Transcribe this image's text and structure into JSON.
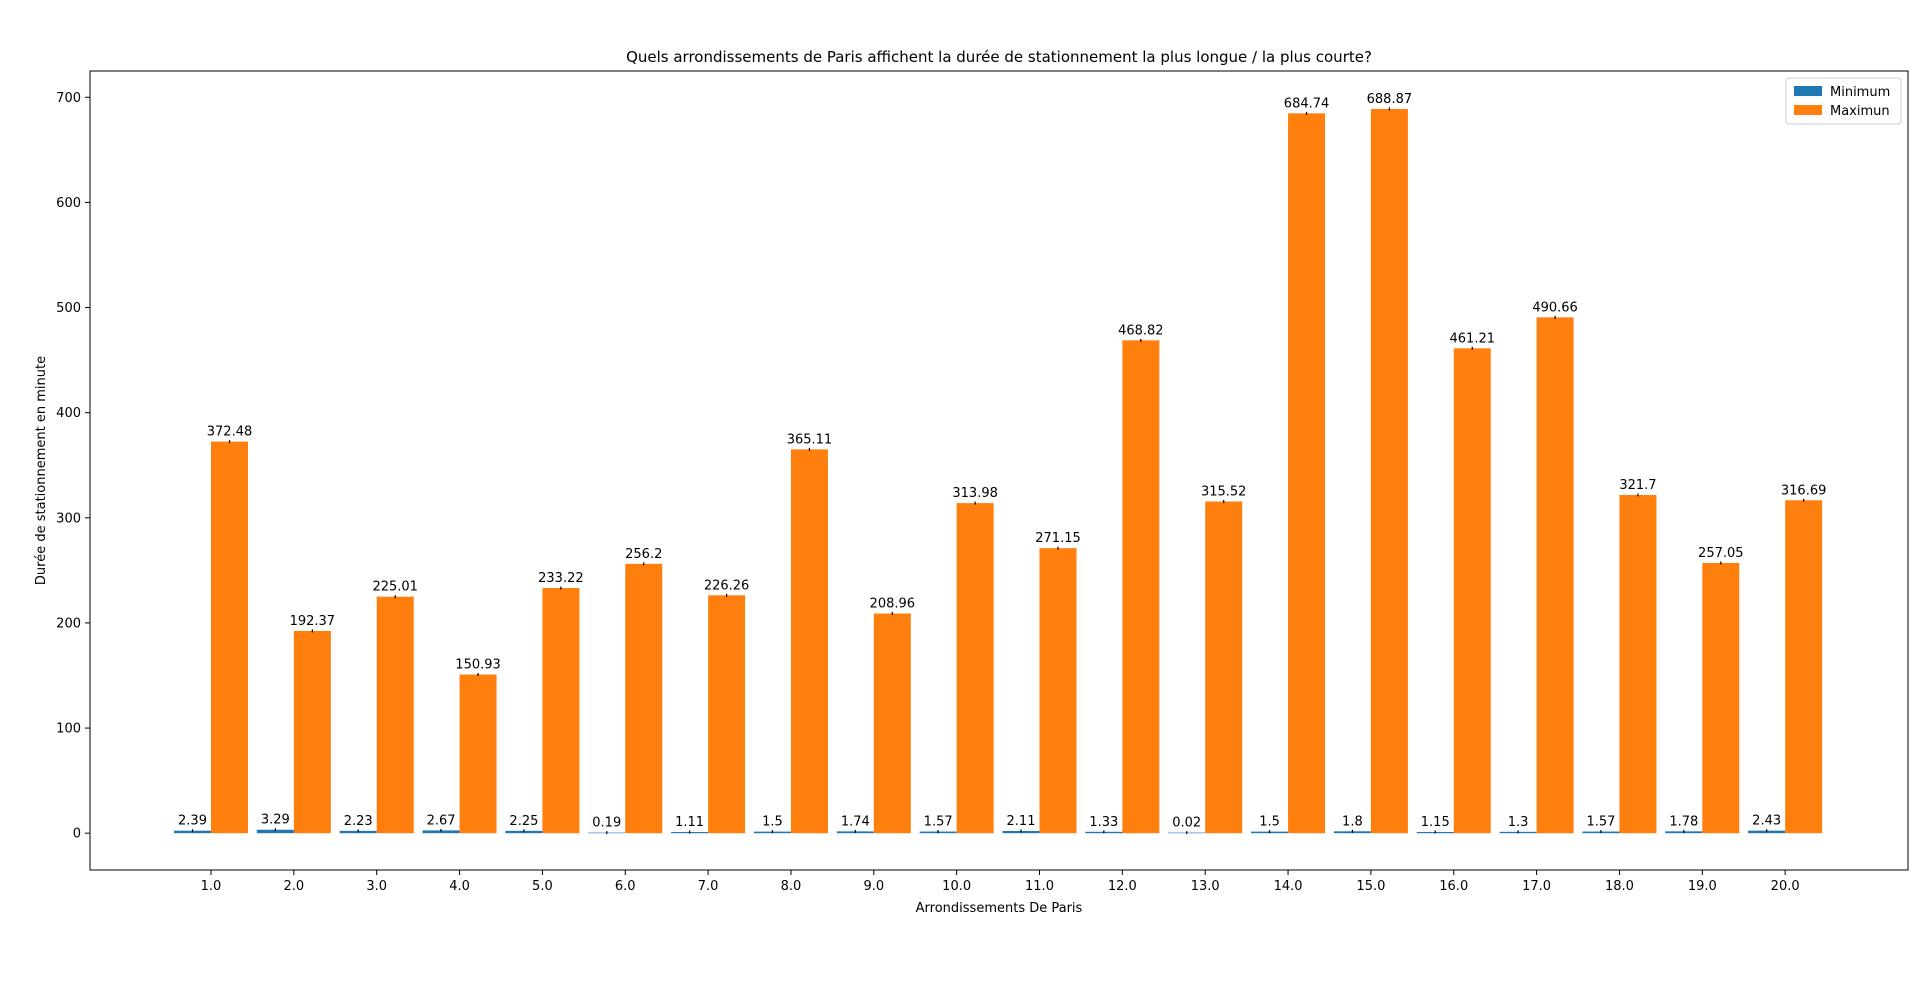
{
  "chart_data": {
    "type": "bar",
    "title": "Quels arrondissements de Paris affichent la durée de stationnement la plus longue / la plus courte?",
    "xlabel": "Arrondissements De Paris",
    "ylabel": "Durée de stationnement en minute",
    "ylim": [
      -35,
      725
    ],
    "yticks": [
      "0",
      "100",
      "200",
      "300",
      "400",
      "500",
      "600",
      "700"
    ],
    "categories": [
      "1.0",
      "2.0",
      "3.0",
      "4.0",
      "5.0",
      "6.0",
      "7.0",
      "8.0",
      "9.0",
      "10.0",
      "11.0",
      "12.0",
      "13.0",
      "14.0",
      "15.0",
      "16.0",
      "17.0",
      "18.0",
      "19.0",
      "20.0"
    ],
    "series": [
      {
        "name": "Minimum",
        "color": "#1f77b4",
        "values": [
          2.39,
          3.29,
          2.23,
          2.67,
          2.25,
          0.19,
          1.11,
          1.5,
          1.74,
          1.57,
          2.11,
          1.33,
          0.02,
          1.5,
          1.8,
          1.15,
          1.3,
          1.57,
          1.78,
          2.43
        ],
        "labels": [
          "2.39",
          "3.29",
          "2.23",
          "2.67",
          "2.25",
          "0.19",
          "1.11",
          "1.5",
          "1.74",
          "1.57",
          "2.11",
          "1.33",
          "0.02",
          "1.5",
          "1.8",
          "1.15",
          "1.3",
          "1.57",
          "1.78",
          "2.43"
        ]
      },
      {
        "name": "Maximun",
        "color": "#ff7f0e",
        "values": [
          372.48,
          192.37,
          225.01,
          150.93,
          233.22,
          256.2,
          226.26,
          365.11,
          208.96,
          313.98,
          271.15,
          468.82,
          315.52,
          684.74,
          688.87,
          461.21,
          490.66,
          321.7,
          257.05,
          316.69
        ],
        "labels": [
          "372.48",
          "192.37",
          "225.01",
          "150.93",
          "233.22",
          "256.2",
          "226.26",
          "365.11",
          "208.96",
          "313.98",
          "271.15",
          "468.82",
          "315.52",
          "684.74",
          "688.87",
          "461.21",
          "490.66",
          "321.7",
          "257.05",
          "316.69"
        ]
      }
    ],
    "legend": "top-right",
    "grid": false
  }
}
